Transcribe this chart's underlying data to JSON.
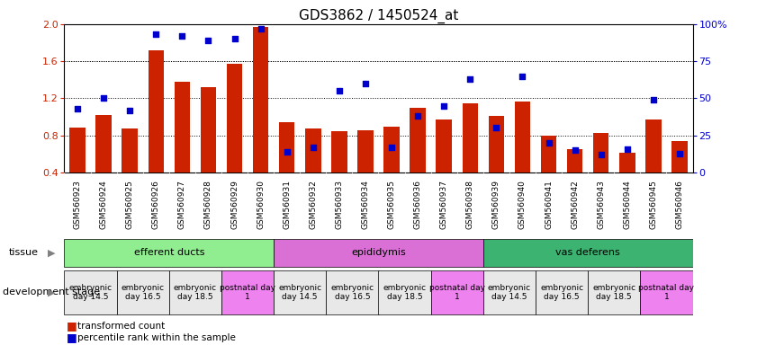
{
  "title": "GDS3862 / 1450524_at",
  "samples": [
    "GSM560923",
    "GSM560924",
    "GSM560925",
    "GSM560926",
    "GSM560927",
    "GSM560928",
    "GSM560929",
    "GSM560930",
    "GSM560931",
    "GSM560932",
    "GSM560933",
    "GSM560934",
    "GSM560935",
    "GSM560936",
    "GSM560937",
    "GSM560938",
    "GSM560939",
    "GSM560940",
    "GSM560941",
    "GSM560942",
    "GSM560943",
    "GSM560944",
    "GSM560945",
    "GSM560946"
  ],
  "bar_values": [
    0.88,
    1.02,
    0.87,
    1.72,
    1.38,
    1.32,
    1.57,
    1.97,
    0.94,
    0.87,
    0.85,
    0.86,
    0.89,
    1.1,
    0.97,
    1.15,
    1.01,
    1.17,
    0.8,
    0.65,
    0.83,
    0.61,
    0.97,
    0.74
  ],
  "percentile_values": [
    43,
    50,
    42,
    93,
    92,
    89,
    90,
    97,
    14,
    17,
    55,
    60,
    17,
    38,
    45,
    63,
    30,
    65,
    20,
    15,
    12,
    16,
    49,
    13
  ],
  "ylim_left": [
    0.4,
    2.0
  ],
  "ylim_right": [
    0,
    100
  ],
  "bar_color": "#cc2200",
  "point_color": "#0000cc",
  "tissues": [
    {
      "label": "efferent ducts",
      "start": 0,
      "end": 8,
      "color": "#90ee90"
    },
    {
      "label": "epididymis",
      "start": 8,
      "end": 16,
      "color": "#da70d6"
    },
    {
      "label": "vas deferens",
      "start": 16,
      "end": 24,
      "color": "#3cb371"
    }
  ],
  "dev_stages": [
    {
      "label": "embryonic\nday 14.5",
      "start": 0,
      "end": 2,
      "color": "#e8e8e8"
    },
    {
      "label": "embryonic\nday 16.5",
      "start": 2,
      "end": 4,
      "color": "#e8e8e8"
    },
    {
      "label": "embryonic\nday 18.5",
      "start": 4,
      "end": 6,
      "color": "#e8e8e8"
    },
    {
      "label": "postnatal day\n1",
      "start": 6,
      "end": 8,
      "color": "#ee82ee"
    },
    {
      "label": "embryonic\nday 14.5",
      "start": 8,
      "end": 10,
      "color": "#e8e8e8"
    },
    {
      "label": "embryonic\nday 16.5",
      "start": 10,
      "end": 12,
      "color": "#e8e8e8"
    },
    {
      "label": "embryonic\nday 18.5",
      "start": 12,
      "end": 14,
      "color": "#e8e8e8"
    },
    {
      "label": "postnatal day\n1",
      "start": 14,
      "end": 16,
      "color": "#ee82ee"
    },
    {
      "label": "embryonic\nday 14.5",
      "start": 16,
      "end": 18,
      "color": "#e8e8e8"
    },
    {
      "label": "embryonic\nday 16.5",
      "start": 18,
      "end": 20,
      "color": "#e8e8e8"
    },
    {
      "label": "embryonic\nday 18.5",
      "start": 20,
      "end": 22,
      "color": "#e8e8e8"
    },
    {
      "label": "postnatal day\n1",
      "start": 22,
      "end": 24,
      "color": "#ee82ee"
    }
  ],
  "yticks_left": [
    0.4,
    0.8,
    1.2,
    1.6,
    2.0
  ],
  "yticks_right": [
    0,
    25,
    50,
    75,
    100
  ],
  "grid_values": [
    0.8,
    1.2,
    1.6
  ],
  "legend_bar_label": "transformed count",
  "legend_pct_label": "percentile rank within the sample",
  "tissue_label": "tissue",
  "dev_stage_label": "development stage",
  "xtick_bg_color": "#d0d0d0",
  "right_axis_label_color": "#0000cc",
  "left_axis_label_color": "#cc2200"
}
